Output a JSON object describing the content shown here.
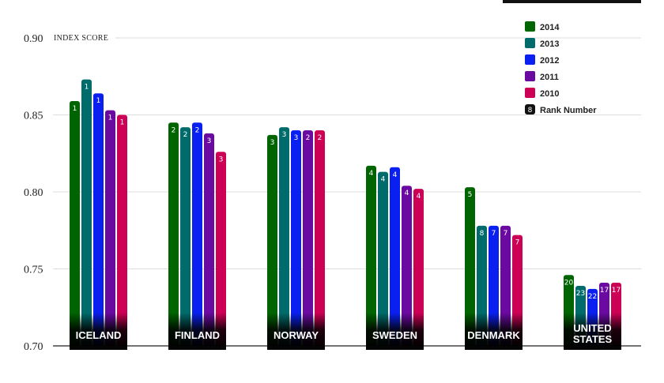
{
  "chart_data": {
    "type": "bar",
    "ylabel": "INDEX SCORE",
    "ylim": [
      0.7,
      0.9
    ],
    "yticks": [
      "0.70",
      "0.75",
      "0.80",
      "0.85",
      "0.90"
    ],
    "grid": true,
    "legend_position": "top-right",
    "categories": [
      "ICELAND",
      "FINLAND",
      "NORWAY",
      "SWEDEN",
      "DENMARK",
      "UNITED STATES"
    ],
    "series": [
      {
        "name": "2014",
        "color": "#006400",
        "values": [
          0.859,
          0.845,
          0.837,
          0.817,
          0.803,
          0.746
        ],
        "ranks": [
          "1",
          "2",
          "3",
          "4",
          "5",
          "20"
        ]
      },
      {
        "name": "2013",
        "color": "#006b6b",
        "values": [
          0.873,
          0.842,
          0.842,
          0.813,
          0.778,
          0.739
        ],
        "ranks": [
          "1",
          "2",
          "3",
          "4",
          "8",
          "23"
        ]
      },
      {
        "name": "2012",
        "color": "#0a20f0",
        "values": [
          0.864,
          0.845,
          0.84,
          0.816,
          0.778,
          0.737
        ],
        "ranks": [
          "1",
          "2",
          "3",
          "4",
          "7",
          "22"
        ]
      },
      {
        "name": "2011",
        "color": "#6a0aa0",
        "values": [
          0.853,
          0.838,
          0.84,
          0.804,
          0.778,
          0.741
        ],
        "ranks": [
          "1",
          "3",
          "2",
          "4",
          "7",
          "17"
        ]
      },
      {
        "name": "2010",
        "color": "#cc0055",
        "values": [
          0.85,
          0.826,
          0.84,
          0.802,
          0.772,
          0.741
        ],
        "ranks": [
          "1",
          "3",
          "2",
          "4",
          "7",
          "17"
        ]
      }
    ],
    "rank_legend": {
      "badge": "8",
      "label": "Rank Number"
    }
  }
}
